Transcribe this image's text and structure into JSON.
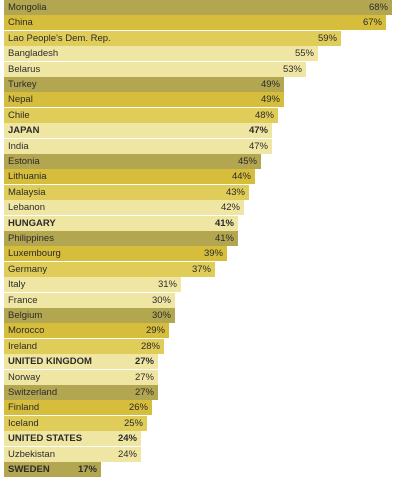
{
  "chart_data": {
    "type": "bar",
    "orientation": "horizontal",
    "title": "",
    "xlabel": "",
    "ylabel": "",
    "xlim": [
      0,
      70
    ],
    "grid": false,
    "value_suffix": "%",
    "categories": [
      "Mongolia",
      "China",
      "Lao People's Dem. Rep.",
      "Bangladesh",
      "Belarus",
      "Turkey",
      "Nepal",
      "Chile",
      "JAPAN",
      "India",
      "Estonia",
      "Lithuania",
      "Malaysia",
      "Lebanon",
      "HUNGARY",
      "Philippines",
      "Luxembourg",
      "Germany",
      "Italy",
      "France",
      "Belgium",
      "Morocco",
      "Ireland",
      "UNITED KINGDOM",
      "Norway",
      "Switzerland",
      "Finland",
      "Iceland",
      "UNITED STATES",
      "Uzbekistan",
      "SWEDEN"
    ],
    "values": [
      68,
      67,
      59,
      55,
      53,
      49,
      49,
      48,
      47,
      47,
      45,
      44,
      43,
      42,
      41,
      41,
      39,
      37,
      31,
      30,
      30,
      29,
      28,
      27,
      27,
      27,
      26,
      25,
      24,
      24,
      17
    ],
    "highlighted": [
      "JAPAN",
      "HUNGARY",
      "UNITED KINGDOM",
      "UNITED STATES",
      "SWEDEN"
    ],
    "bar_colors": {
      "dark_olive": "#b3a651",
      "gold": "#d6bd3b",
      "mustard": "#e0cc58",
      "pale": "#f0e6a3"
    },
    "bar_color_keys": [
      "dark_olive",
      "gold",
      "mustard",
      "pale",
      "pale",
      "dark_olive",
      "gold",
      "mustard",
      "pale",
      "pale",
      "dark_olive",
      "gold",
      "mustard",
      "pale",
      "pale",
      "dark_olive",
      "gold",
      "mustard",
      "pale",
      "pale",
      "dark_olive",
      "gold",
      "mustard",
      "pale",
      "pale",
      "dark_olive",
      "gold",
      "mustard",
      "pale",
      "pale",
      "dark_olive"
    ]
  }
}
